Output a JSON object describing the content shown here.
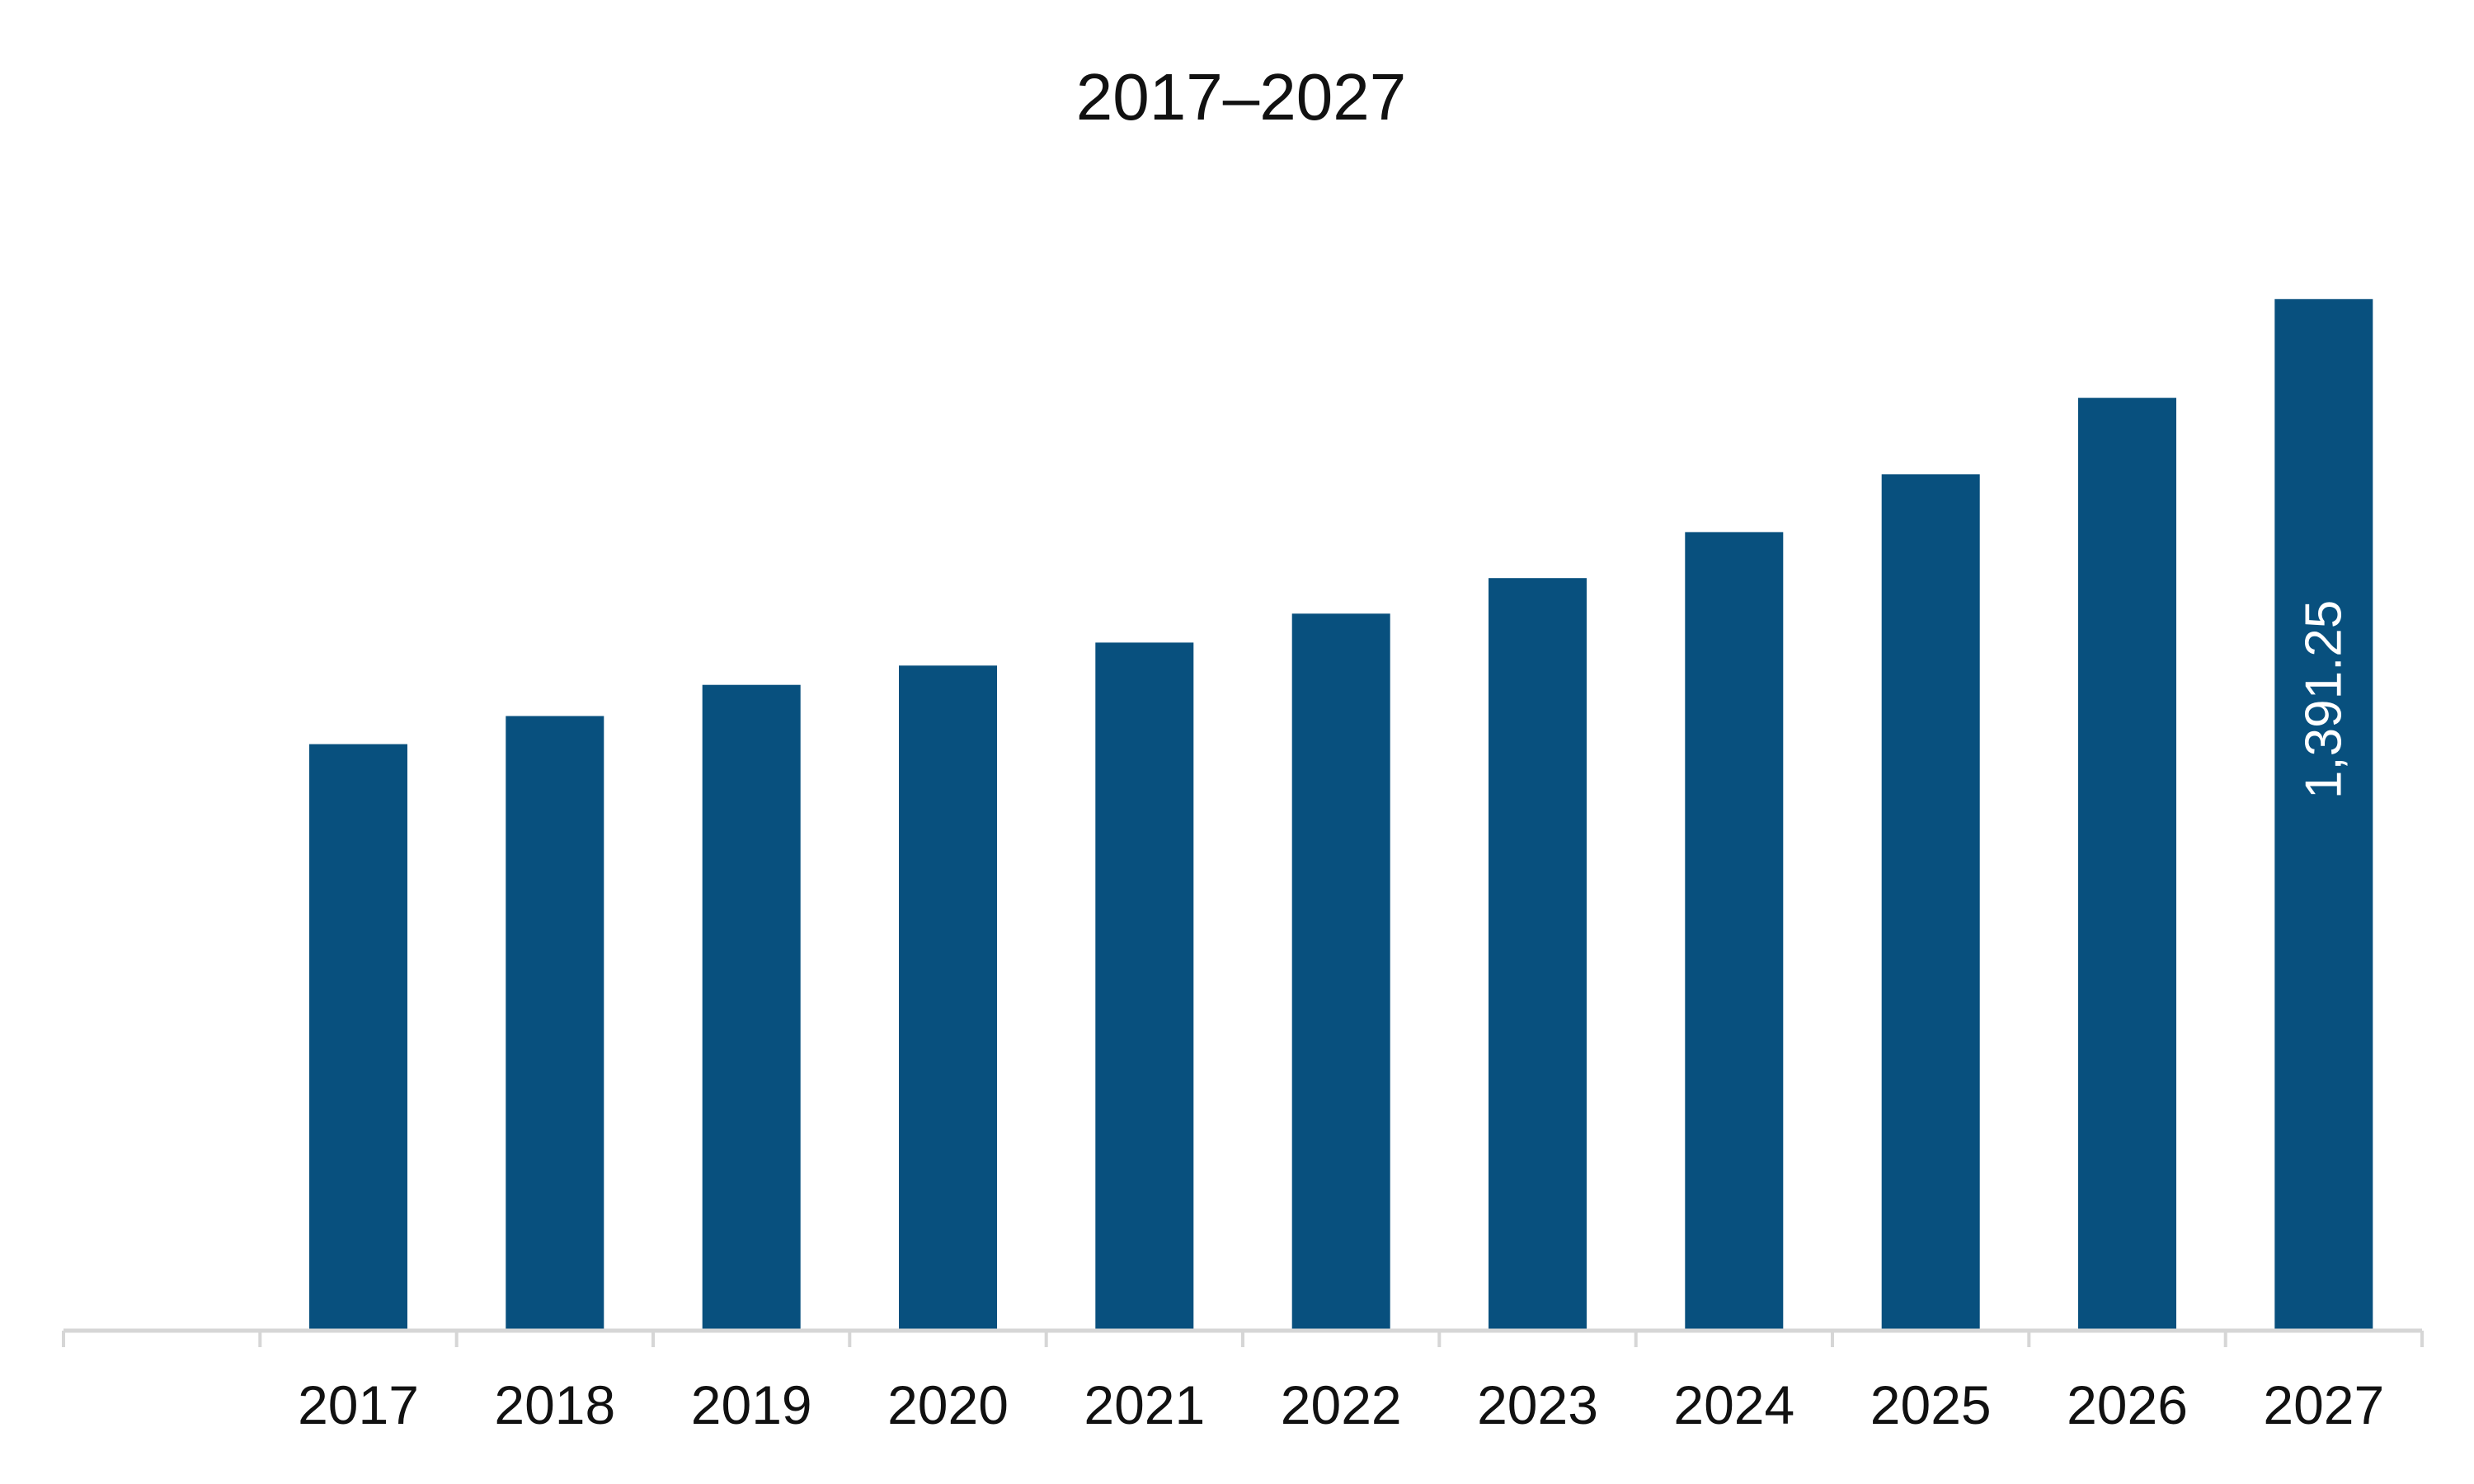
{
  "chart_data": {
    "type": "bar",
    "title": "2017–2027",
    "xlabel": "",
    "ylabel": "",
    "categories": [
      "",
      "2017",
      "2018",
      "2019",
      "2020",
      "2021",
      "2022",
      "2023",
      "2024",
      "2025",
      "2026",
      "2027"
    ],
    "values": [
      null,
      791,
      829,
      871,
      897,
      928,
      967,
      1015,
      1077,
      1155,
      1258,
      1391.25
    ],
    "data_labels": [
      "",
      "",
      "",
      "",
      "",
      "",
      "",
      "",
      "",
      "",
      "",
      "1,391.25"
    ],
    "ylim": [
      0,
      1500
    ],
    "grid": false,
    "legend": "none",
    "colors": {
      "bar": "#08507e",
      "axis": "#d6d6d6",
      "text": "#111111",
      "data_label": "#ffffff"
    }
  }
}
